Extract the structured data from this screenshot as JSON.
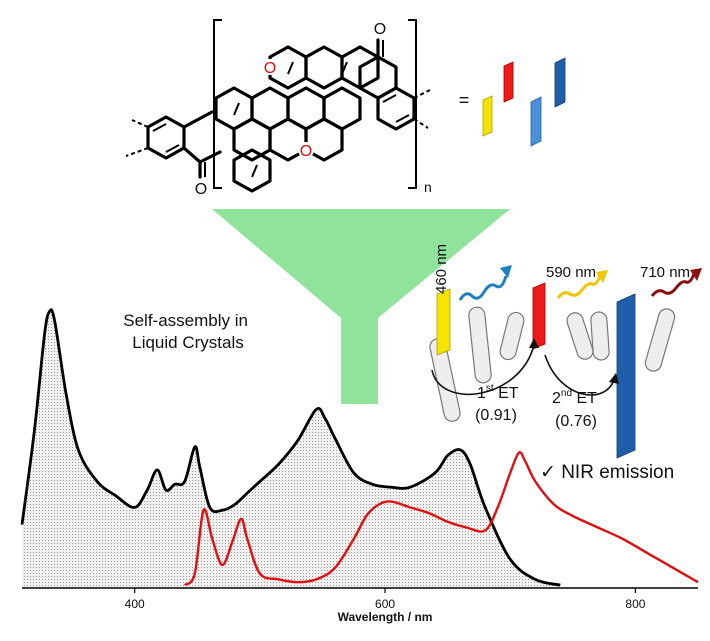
{
  "molecule": {
    "oxygen_label": "O",
    "subscript_label": "n",
    "equals_label": "="
  },
  "self_assembly_label": [
    "Self-assembly in",
    "Liquid Crystals"
  ],
  "emission_labels": [
    "460 nm",
    "590 nm",
    "710 nm"
  ],
  "energy_transfer": {
    "first": {
      "prefix": "1",
      "superscript": "st",
      "suffix": " ET",
      "value": "(0.91)"
    },
    "second": {
      "prefix": "2",
      "superscript": "nd",
      "suffix": " ET",
      "value": "(0.76)"
    }
  },
  "nir_label": "✓ NIR emission",
  "colors": {
    "yellow": "#f5e400",
    "red": "#ee1a1a",
    "light_blue": "#4a90d9",
    "dark_blue": "#1f5ea8",
    "funnel_green": "#8fe39b",
    "absorption_black": "#000000",
    "emission_red": "#e01010",
    "wave_blue": "#1e7fc0",
    "wave_yellow": "#f4c400",
    "wave_darkred": "#8b1010"
  },
  "chart_data": {
    "type": "line",
    "xlabel": "Wavelength / nm",
    "ylabel": "",
    "xlim": [
      310,
      850
    ],
    "ylim": [
      0,
      1.0
    ],
    "x_ticks": [
      400,
      600,
      800
    ],
    "series": [
      {
        "color": "#000000",
        "fill": true,
        "x": [
          310,
          320,
          328,
          332,
          336,
          345,
          355,
          370,
          385,
          400,
          410,
          418,
          425,
          432,
          440,
          448,
          452,
          460,
          470,
          480,
          490,
          500,
          515,
          530,
          545,
          552,
          560,
          575,
          590,
          605,
          620,
          640,
          650,
          660,
          668,
          680,
          700,
          720,
          740
        ],
        "y": [
          0.22,
          0.55,
          0.88,
          0.96,
          0.93,
          0.68,
          0.48,
          0.37,
          0.32,
          0.28,
          0.34,
          0.41,
          0.34,
          0.36,
          0.37,
          0.49,
          0.42,
          0.28,
          0.27,
          0.29,
          0.33,
          0.37,
          0.43,
          0.51,
          0.62,
          0.59,
          0.52,
          0.4,
          0.36,
          0.35,
          0.35,
          0.4,
          0.46,
          0.48,
          0.43,
          0.28,
          0.1,
          0.03,
          0.01
        ]
      },
      {
        "color": "#e01010",
        "fill": false,
        "x": [
          440,
          448,
          455,
          462,
          470,
          478,
          485,
          490,
          500,
          515,
          530,
          545,
          560,
          575,
          585,
          595,
          605,
          620,
          635,
          650,
          665,
          680,
          690,
          700,
          707,
          712,
          720,
          735,
          750,
          770,
          790,
          810,
          830,
          850
        ],
        "y": [
          0.01,
          0.05,
          0.27,
          0.17,
          0.08,
          0.16,
          0.24,
          0.17,
          0.05,
          0.03,
          0.02,
          0.03,
          0.07,
          0.17,
          0.25,
          0.29,
          0.3,
          0.28,
          0.26,
          0.23,
          0.21,
          0.2,
          0.28,
          0.4,
          0.47,
          0.44,
          0.37,
          0.29,
          0.25,
          0.21,
          0.17,
          0.12,
          0.07,
          0.02
        ]
      }
    ]
  }
}
